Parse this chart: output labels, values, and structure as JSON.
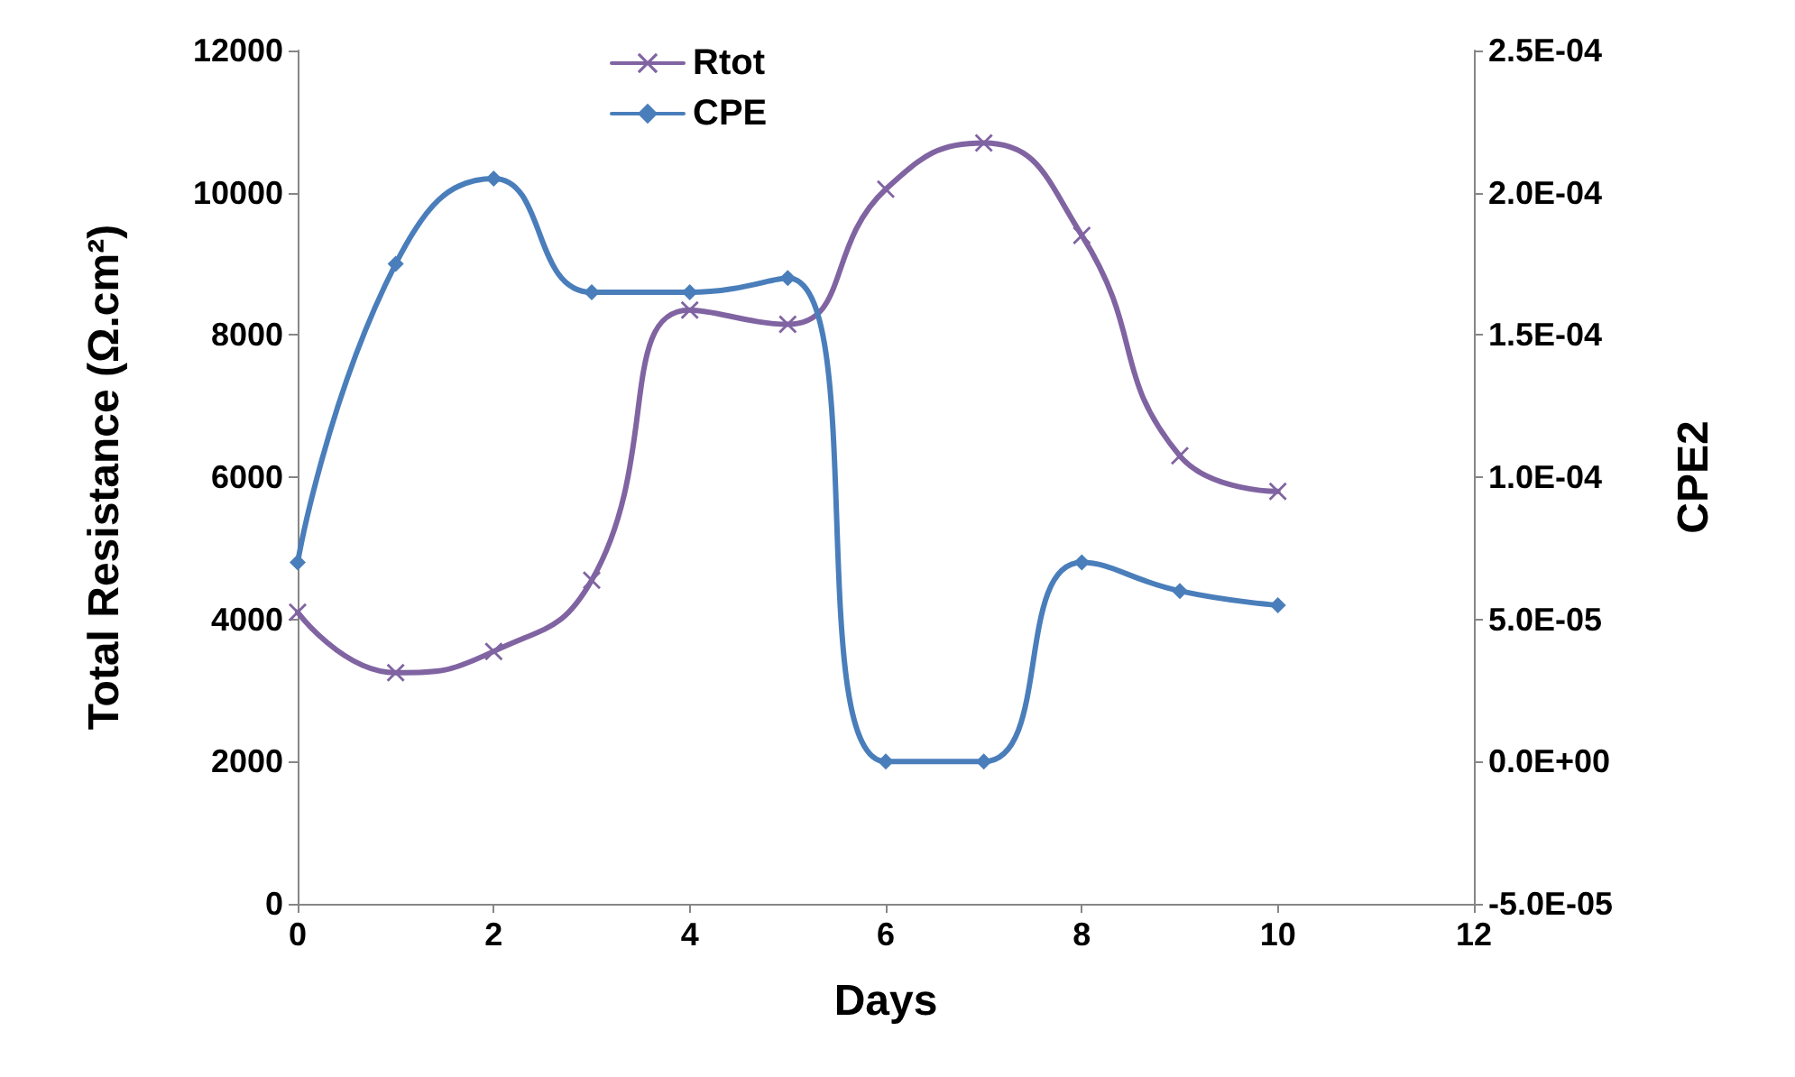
{
  "chart_data": {
    "type": "line",
    "xlabel": "Days",
    "ylabel": "Total Resistance (Ω.cm²)",
    "y2label": "CPE2",
    "x": [
      0,
      1,
      2,
      3,
      4,
      5,
      6,
      7,
      8,
      9,
      10
    ],
    "series": [
      {
        "name": "Rtot",
        "color": "#8064a2",
        "marker": "cross",
        "values": [
          4100,
          3250,
          3550,
          4550,
          8350,
          8150,
          10050,
          10700,
          9400,
          6300,
          5800
        ]
      },
      {
        "name": "CPE",
        "color": "#4a7ebb",
        "marker": "diamond",
        "axis": "y2",
        "values": [
          7e-05,
          0.000175,
          0.000205,
          0.000165,
          0.000165,
          0.00017,
          0,
          0,
          7e-05,
          6e-05,
          5.5e-05
        ]
      }
    ],
    "xlim": [
      0,
      12
    ],
    "xticks": [
      0,
      2,
      4,
      6,
      8,
      10,
      12
    ],
    "ylim": [
      0,
      12000
    ],
    "yticks": [
      0,
      2000,
      4000,
      6000,
      8000,
      10000,
      12000
    ],
    "y2lim": [
      -5e-05,
      0.00025
    ],
    "y2ticks": [
      {
        "value": -5e-05,
        "label": "-5.0E-05"
      },
      {
        "value": 0,
        "label": "0.0E+00"
      },
      {
        "value": 5e-05,
        "label": "5.0E-05"
      },
      {
        "value": 0.0001,
        "label": "1.0E-04"
      },
      {
        "value": 0.00015,
        "label": "1.5E-04"
      },
      {
        "value": 0.0002,
        "label": "2.0E-04"
      },
      {
        "value": 0.00025,
        "label": "2.5E-04"
      }
    ],
    "grid": false,
    "legend": "top"
  }
}
